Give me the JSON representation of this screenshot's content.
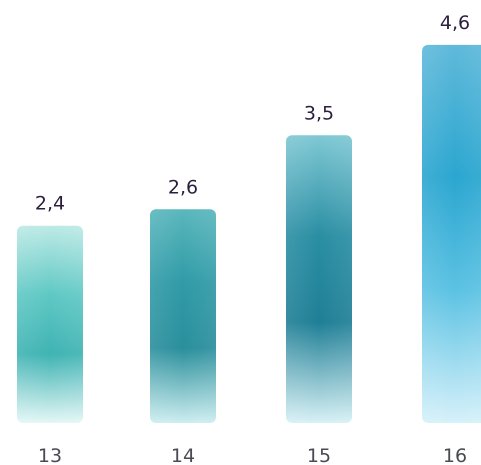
{
  "chart_data": {
    "type": "bar",
    "categories": [
      "13",
      "14",
      "15",
      "16"
    ],
    "values": [
      2.4,
      2.6,
      3.5,
      4.6
    ],
    "value_labels": [
      "2,4",
      "2,6",
      "3,5",
      "4,6"
    ],
    "title": "",
    "xlabel": "",
    "ylabel": "",
    "ylim": [
      0,
      4.8
    ],
    "grid": false,
    "bar_colors": [
      [
        "#bdeae6",
        "#5fc8c4",
        "#3fb3b3",
        "#e4f7f6"
      ],
      [
        "#5ab7bd",
        "#2f9aa6",
        "#2a8f9c",
        "#cdeef0"
      ],
      [
        "#7fc8d4",
        "#2a8ea3",
        "#1f7f96",
        "#d8f1f5"
      ],
      [
        "#5fb9da",
        "#2ba6d0",
        "#5cc2e3",
        "#d6f1fa"
      ]
    ]
  }
}
